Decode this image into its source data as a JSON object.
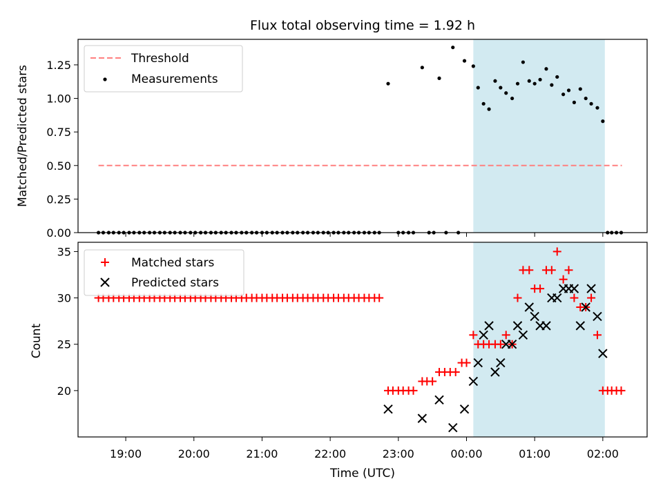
{
  "chart_data": [
    {
      "type": "scatter",
      "title": "Flux total observing time = 1.92 h",
      "xlabel": "",
      "ylabel": "Matched/Predicted stars",
      "ylim": [
        0,
        1.44
      ],
      "yticks": [
        0.0,
        0.25,
        0.5,
        0.75,
        1.0,
        1.25
      ],
      "ytick_labels": [
        "0.00",
        "0.25",
        "0.50",
        "0.75",
        "1.00",
        "1.25"
      ],
      "legend_loc": "upper-left",
      "highlight_span": {
        "start_h": 24.1,
        "end_h": 26.03,
        "color": "#add8e6"
      },
      "threshold": {
        "name": "Threshold",
        "value": 0.5,
        "x_start_h": 18.6,
        "x_end_h": 26.28,
        "color": "#ff7f7f"
      },
      "measurements": {
        "name": "Measurements",
        "color": "#000000",
        "points": [
          [
            18.6,
            0
          ],
          [
            18.67,
            0
          ],
          [
            18.75,
            0
          ],
          [
            18.82,
            0
          ],
          [
            18.9,
            0
          ],
          [
            18.97,
            0
          ],
          [
            19.05,
            0
          ],
          [
            19.12,
            0
          ],
          [
            19.2,
            0
          ],
          [
            19.27,
            0
          ],
          [
            19.35,
            0
          ],
          [
            19.42,
            0
          ],
          [
            19.5,
            0
          ],
          [
            19.57,
            0
          ],
          [
            19.65,
            0
          ],
          [
            19.72,
            0
          ],
          [
            19.8,
            0
          ],
          [
            19.87,
            0
          ],
          [
            19.95,
            0
          ],
          [
            20.02,
            0
          ],
          [
            20.1,
            0
          ],
          [
            20.17,
            0
          ],
          [
            20.25,
            0
          ],
          [
            20.32,
            0
          ],
          [
            20.4,
            0
          ],
          [
            20.47,
            0
          ],
          [
            20.55,
            0
          ],
          [
            20.62,
            0
          ],
          [
            20.7,
            0
          ],
          [
            20.77,
            0
          ],
          [
            20.85,
            0
          ],
          [
            20.92,
            0
          ],
          [
            21.0,
            0
          ],
          [
            21.07,
            0
          ],
          [
            21.15,
            0
          ],
          [
            21.22,
            0
          ],
          [
            21.3,
            0
          ],
          [
            21.37,
            0
          ],
          [
            21.45,
            0
          ],
          [
            21.52,
            0
          ],
          [
            21.6,
            0
          ],
          [
            21.67,
            0
          ],
          [
            21.75,
            0
          ],
          [
            21.82,
            0
          ],
          [
            21.9,
            0
          ],
          [
            21.97,
            0
          ],
          [
            22.05,
            0
          ],
          [
            22.12,
            0
          ],
          [
            22.2,
            0
          ],
          [
            22.27,
            0
          ],
          [
            22.35,
            0
          ],
          [
            22.42,
            0
          ],
          [
            22.5,
            0
          ],
          [
            22.57,
            0
          ],
          [
            22.65,
            0
          ],
          [
            22.72,
            0
          ],
          [
            22.85,
            1.11
          ],
          [
            23.0,
            0
          ],
          [
            23.07,
            0
          ],
          [
            23.15,
            0
          ],
          [
            23.22,
            0
          ],
          [
            23.35,
            1.23
          ],
          [
            23.45,
            0
          ],
          [
            23.52,
            0
          ],
          [
            23.6,
            1.15
          ],
          [
            23.7,
            0
          ],
          [
            23.8,
            1.38
          ],
          [
            23.88,
            0
          ],
          [
            23.97,
            1.28
          ],
          [
            24.1,
            1.24
          ],
          [
            24.17,
            1.08
          ],
          [
            24.25,
            0.96
          ],
          [
            24.33,
            0.92
          ],
          [
            24.42,
            1.13
          ],
          [
            24.5,
            1.08
          ],
          [
            24.58,
            1.04
          ],
          [
            24.67,
            1.0
          ],
          [
            24.75,
            1.11
          ],
          [
            24.83,
            1.27
          ],
          [
            24.92,
            1.13
          ],
          [
            25.0,
            1.11
          ],
          [
            25.08,
            1.14
          ],
          [
            25.17,
            1.22
          ],
          [
            25.25,
            1.1
          ],
          [
            25.33,
            1.16
          ],
          [
            25.42,
            1.03
          ],
          [
            25.5,
            1.06
          ],
          [
            25.58,
            0.97
          ],
          [
            25.67,
            1.07
          ],
          [
            25.75,
            1.0
          ],
          [
            25.83,
            0.96
          ],
          [
            25.92,
            0.93
          ],
          [
            26.0,
            0.83
          ],
          [
            26.07,
            0
          ],
          [
            26.13,
            0
          ],
          [
            26.2,
            0
          ],
          [
            26.27,
            0
          ]
        ]
      }
    },
    {
      "type": "scatter",
      "title": "",
      "xlabel": "Time (UTC)",
      "ylabel": "Count",
      "ylim": [
        15,
        36
      ],
      "yticks": [
        20,
        25,
        30,
        35
      ],
      "ytick_labels": [
        "20",
        "25",
        "30",
        "35"
      ],
      "xlim_h": [
        18.3,
        26.65
      ],
      "xticks_h": [
        19,
        20,
        21,
        22,
        23,
        24,
        25,
        26
      ],
      "xtick_labels": [
        "19:00",
        "20:00",
        "21:00",
        "22:00",
        "23:00",
        "00:00",
        "01:00",
        "02:00"
      ],
      "legend_loc": "upper-left",
      "highlight_span": {
        "start_h": 24.1,
        "end_h": 26.03,
        "color": "#add8e6"
      },
      "series": [
        {
          "name": "Matched stars",
          "marker": "plus",
          "color": "#ff0000",
          "points": [
            [
              18.6,
              30
            ],
            [
              18.67,
              30
            ],
            [
              18.75,
              30
            ],
            [
              18.82,
              30
            ],
            [
              18.9,
              30
            ],
            [
              18.97,
              30
            ],
            [
              19.05,
              30
            ],
            [
              19.12,
              30
            ],
            [
              19.2,
              30
            ],
            [
              19.27,
              30
            ],
            [
              19.35,
              30
            ],
            [
              19.42,
              30
            ],
            [
              19.5,
              30
            ],
            [
              19.57,
              30
            ],
            [
              19.65,
              30
            ],
            [
              19.72,
              30
            ],
            [
              19.8,
              30
            ],
            [
              19.87,
              30
            ],
            [
              19.95,
              30
            ],
            [
              20.02,
              30
            ],
            [
              20.1,
              30
            ],
            [
              20.17,
              30
            ],
            [
              20.25,
              30
            ],
            [
              20.32,
              30
            ],
            [
              20.4,
              30
            ],
            [
              20.47,
              30
            ],
            [
              20.55,
              30
            ],
            [
              20.62,
              30
            ],
            [
              20.7,
              30
            ],
            [
              20.77,
              30
            ],
            [
              20.85,
              30
            ],
            [
              20.92,
              30
            ],
            [
              21.0,
              30
            ],
            [
              21.07,
              30
            ],
            [
              21.15,
              30
            ],
            [
              21.22,
              30
            ],
            [
              21.3,
              30
            ],
            [
              21.37,
              30
            ],
            [
              21.45,
              30
            ],
            [
              21.52,
              30
            ],
            [
              21.6,
              30
            ],
            [
              21.67,
              30
            ],
            [
              21.75,
              30
            ],
            [
              21.82,
              30
            ],
            [
              21.9,
              30
            ],
            [
              21.97,
              30
            ],
            [
              22.05,
              30
            ],
            [
              22.12,
              30
            ],
            [
              22.2,
              30
            ],
            [
              22.27,
              30
            ],
            [
              22.35,
              30
            ],
            [
              22.42,
              30
            ],
            [
              22.5,
              30
            ],
            [
              22.57,
              30
            ],
            [
              22.65,
              30
            ],
            [
              22.72,
              30
            ],
            [
              22.85,
              20
            ],
            [
              22.92,
              20
            ],
            [
              23.0,
              20
            ],
            [
              23.07,
              20
            ],
            [
              23.15,
              20
            ],
            [
              23.22,
              20
            ],
            [
              23.35,
              21
            ],
            [
              23.42,
              21
            ],
            [
              23.5,
              21
            ],
            [
              23.6,
              22
            ],
            [
              23.68,
              22
            ],
            [
              23.76,
              22
            ],
            [
              23.84,
              22
            ],
            [
              23.93,
              23
            ],
            [
              24.0,
              23
            ],
            [
              24.1,
              26
            ],
            [
              24.17,
              25
            ],
            [
              24.25,
              25
            ],
            [
              24.33,
              25
            ],
            [
              24.42,
              25
            ],
            [
              24.5,
              25
            ],
            [
              24.58,
              26
            ],
            [
              24.67,
              25
            ],
            [
              24.75,
              30
            ],
            [
              24.83,
              33
            ],
            [
              24.92,
              33
            ],
            [
              25.0,
              31
            ],
            [
              25.08,
              31
            ],
            [
              25.17,
              33
            ],
            [
              25.25,
              33
            ],
            [
              25.33,
              35
            ],
            [
              25.42,
              32
            ],
            [
              25.5,
              33
            ],
            [
              25.58,
              30
            ],
            [
              25.67,
              29
            ],
            [
              25.75,
              29
            ],
            [
              25.83,
              30
            ],
            [
              25.92,
              26
            ],
            [
              26.0,
              20
            ],
            [
              26.07,
              20
            ],
            [
              26.13,
              20
            ],
            [
              26.2,
              20
            ],
            [
              26.27,
              20
            ]
          ]
        },
        {
          "name": "Predicted stars",
          "marker": "x",
          "color": "#000000",
          "points": [
            [
              22.85,
              18
            ],
            [
              23.35,
              17
            ],
            [
              23.6,
              19
            ],
            [
              23.8,
              16
            ],
            [
              23.97,
              18
            ],
            [
              24.1,
              21
            ],
            [
              24.17,
              23
            ],
            [
              24.25,
              26
            ],
            [
              24.33,
              27
            ],
            [
              24.42,
              22
            ],
            [
              24.5,
              23
            ],
            [
              24.58,
              25
            ],
            [
              24.67,
              25
            ],
            [
              24.75,
              27
            ],
            [
              24.83,
              26
            ],
            [
              24.92,
              29
            ],
            [
              25.0,
              28
            ],
            [
              25.08,
              27
            ],
            [
              25.17,
              27
            ],
            [
              25.25,
              30
            ],
            [
              25.33,
              30
            ],
            [
              25.42,
              31
            ],
            [
              25.5,
              31
            ],
            [
              25.58,
              31
            ],
            [
              25.67,
              27
            ],
            [
              25.75,
              29
            ],
            [
              25.83,
              31
            ],
            [
              25.92,
              28
            ],
            [
              26.0,
              24
            ]
          ]
        }
      ]
    }
  ]
}
